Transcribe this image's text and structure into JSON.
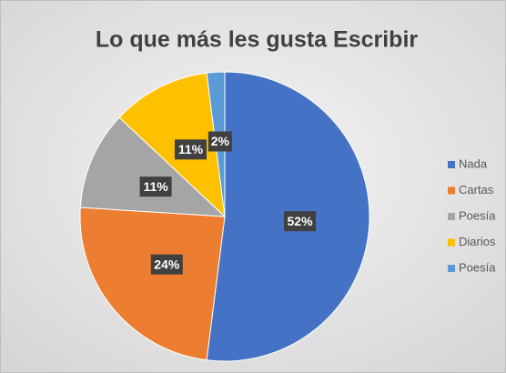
{
  "chart_data": {
    "type": "pie",
    "title": "Lo que más les gusta Escribir",
    "categories": [
      "Nada",
      "Cartas",
      "Poesía",
      "Diarios",
      "Poesía"
    ],
    "values": [
      52,
      24,
      11,
      11,
      2
    ],
    "value_labels": [
      "52%",
      "24%",
      "11%",
      "11%",
      "2%"
    ],
    "colors": [
      "#4472c4",
      "#ed7d31",
      "#a5a5a5",
      "#ffc000",
      "#5b9bd5"
    ],
    "legend": "right"
  }
}
